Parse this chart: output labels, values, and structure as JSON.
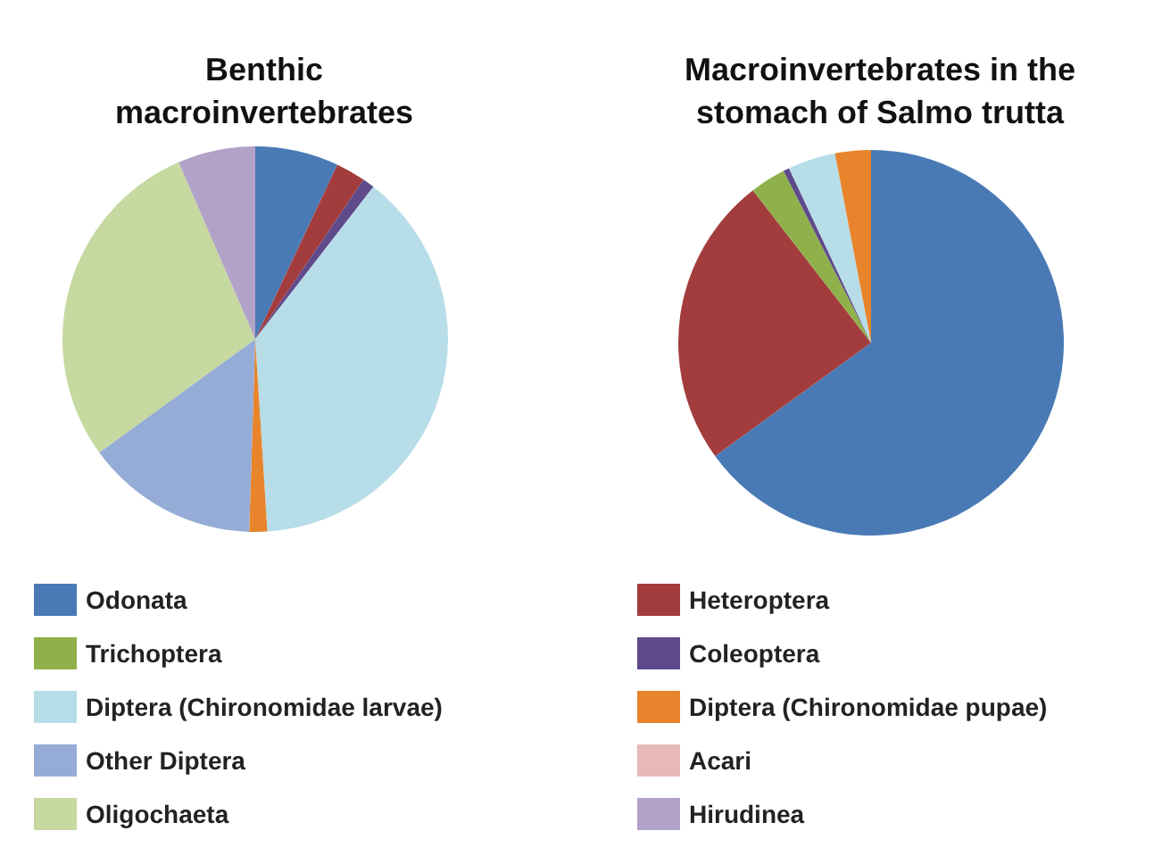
{
  "chart_data": {
    "type": "pie",
    "legend": "bottom",
    "categories": [
      "Odonata",
      "Heteroptera",
      "Trichoptera",
      "Coleoptera",
      "Diptera (Chironomidae larvae)",
      "Diptera (Chironomidae pupae)",
      "Other Diptera",
      "Acari",
      "Oligochaeta",
      "Hirudinea"
    ],
    "colors": [
      "#4a7ab5",
      "#a33d3d",
      "#8fb04a",
      "#5f4a8b",
      "#b7dde8",
      "#e8842c",
      "#95acd6",
      "#e6b9b8",
      "#c5d9a0",
      "#b3a2c7"
    ],
    "series": [
      {
        "name": "Benthic\nmacroinvertebrates",
        "values": [
          7,
          2.5,
          0,
          1,
          38.5,
          1.5,
          14.5,
          0,
          28.5,
          6.5
        ]
      },
      {
        "name": "Macroinvertebrates in the\nstomach of Salmo trutta",
        "values": [
          65,
          24.5,
          3,
          0.5,
          4,
          3,
          0,
          0,
          0,
          0
        ]
      }
    ]
  }
}
